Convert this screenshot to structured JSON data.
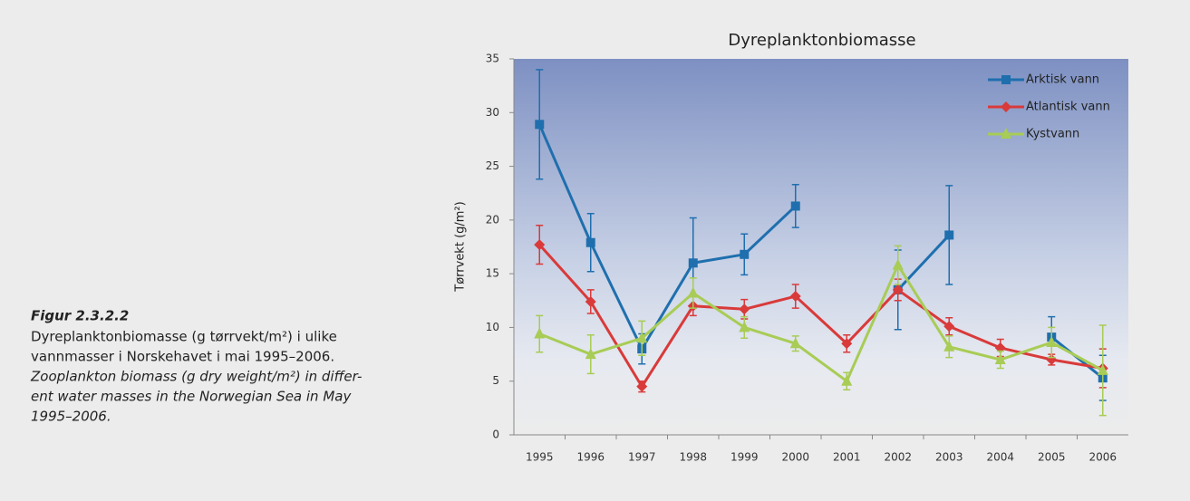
{
  "caption": {
    "label": "Figur 2.3.2.2",
    "norwegian": [
      "Dyreplanktonbiomasse (g tørrvekt/m²) i ulike",
      "vannmasser i Norskehavet i mai 1995–2006."
    ],
    "english": [
      "Zooplankton biomass (g dry weight/m²) in differ-",
      "ent water masses in the Norwegian Sea in May",
      "1995–2006."
    ]
  },
  "chart_data": {
    "type": "line",
    "title": "Dyreplanktonbiomasse",
    "y_label": "Tørrvekt (g/m²)",
    "categories": [
      "1995",
      "1996",
      "1997",
      "1998",
      "1999",
      "2000",
      "2001",
      "2002",
      "2003",
      "2004",
      "2005",
      "2006"
    ],
    "ylim": [
      0,
      35
    ],
    "yticks": [
      0,
      5,
      10,
      15,
      20,
      25,
      30,
      35
    ],
    "legend": "upper right",
    "series": [
      {
        "name": "Arktisk vann",
        "color": "#1f6fae",
        "marker": "square",
        "values": [
          28.9,
          17.9,
          8.0,
          16.0,
          16.8,
          21.3,
          null,
          13.5,
          18.6,
          null,
          9.1,
          5.3
        ],
        "errors": [
          5.1,
          2.7,
          1.4,
          4.2,
          1.9,
          2.0,
          null,
          3.7,
          4.6,
          null,
          1.9,
          2.1
        ]
      },
      {
        "name": "Atlantisk vann",
        "color": "#d93a3a",
        "marker": "diamond",
        "values": [
          17.7,
          12.4,
          4.5,
          12.0,
          11.7,
          12.9,
          8.5,
          13.5,
          10.1,
          8.1,
          7.0,
          6.2
        ],
        "errors": [
          1.8,
          1.1,
          0.5,
          0.9,
          0.9,
          1.1,
          0.8,
          1.0,
          0.8,
          0.8,
          0.5,
          1.8
        ]
      },
      {
        "name": "Kystvann",
        "color": "#a8cc55",
        "marker": "triangle",
        "values": [
          9.4,
          7.5,
          9.0,
          13.2,
          10.0,
          8.5,
          5.0,
          15.8,
          8.2,
          7.0,
          8.6,
          6.0
        ],
        "errors": [
          1.7,
          1.8,
          1.6,
          1.4,
          1.0,
          0.7,
          0.8,
          1.8,
          1.0,
          0.8,
          1.4,
          4.2
        ]
      }
    ]
  }
}
